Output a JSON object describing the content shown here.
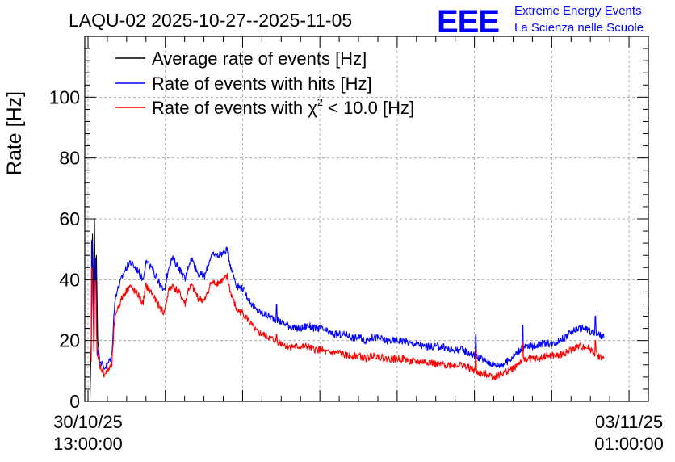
{
  "chart_data": {
    "type": "line",
    "title": "LAQU-02 2025-10-27--2025-11-05",
    "xlabel": "",
    "ylabel": "Rate [Hz]",
    "ylim": [
      0,
      120
    ],
    "yticks": [
      0,
      20,
      40,
      60,
      80,
      100
    ],
    "xlim_hours_from_first_label": [
      -0.5,
      87
    ],
    "xtick_labels": [
      {
        "line1": "30/10/25",
        "line2": "13:00:00",
        "hours": 0
      },
      {
        "line1": "03/11/25",
        "line2": "01:00:00",
        "hours": 84
      }
    ],
    "x_gridlines_hours": [
      0,
      12,
      24,
      36,
      48,
      60,
      72,
      84
    ],
    "grid": true,
    "legend_position": "top-left",
    "series": [
      {
        "name": "Average rate of events [Hz]",
        "legend_prefix": "Average rate of events [Hz]",
        "color": "#000000",
        "points": [
          [
            0.3,
            0
          ],
          [
            0.5,
            20
          ],
          [
            0.7,
            55
          ],
          [
            0.8,
            30
          ],
          [
            1.0,
            60
          ],
          [
            1.1,
            40
          ],
          [
            1.3,
            48
          ],
          [
            1.5,
            20
          ],
          [
            1.8,
            14
          ]
        ]
      },
      {
        "name": "Rate of events with hits [Hz]",
        "legend_prefix": "Rate of events with hits [Hz]",
        "color": "#0000ff",
        "noise": 1.2,
        "points": [
          [
            0.5,
            14
          ],
          [
            0.7,
            47
          ],
          [
            0.9,
            20
          ],
          [
            1.2,
            47
          ],
          [
            1.4,
            18
          ],
          [
            1.8,
            14
          ],
          [
            2.5,
            11
          ],
          [
            3.0,
            12
          ],
          [
            3.7,
            15
          ],
          [
            4.0,
            28
          ],
          [
            4.3,
            35
          ],
          [
            5.5,
            42
          ],
          [
            6.5,
            46
          ],
          [
            7.3,
            44
          ],
          [
            7.8,
            43
          ],
          [
            8.5,
            40
          ],
          [
            9.0,
            46
          ],
          [
            9.8,
            44
          ],
          [
            10.8,
            40
          ],
          [
            11.8,
            36
          ],
          [
            12.6,
            45
          ],
          [
            13.1,
            47
          ],
          [
            14.1,
            44
          ],
          [
            15.1,
            40
          ],
          [
            15.6,
            45
          ],
          [
            16.1,
            47
          ],
          [
            17.1,
            42
          ],
          [
            18.1,
            41
          ],
          [
            19.1,
            48
          ],
          [
            20.1,
            48
          ],
          [
            21.1,
            49
          ],
          [
            21.6,
            50
          ],
          [
            22.1,
            45
          ],
          [
            23.1,
            38
          ],
          [
            24.1,
            37
          ],
          [
            25.1,
            33
          ],
          [
            26.1,
            30
          ],
          [
            27.1,
            29
          ],
          [
            28.1,
            28
          ],
          [
            29.1,
            27
          ],
          [
            30.1,
            26
          ],
          [
            31.1,
            25
          ],
          [
            32.1,
            24
          ],
          [
            33.1,
            24
          ],
          [
            34.1,
            25
          ],
          [
            35.1,
            24
          ],
          [
            36.1,
            24
          ],
          [
            37.1,
            23
          ],
          [
            38.1,
            22
          ],
          [
            39.1,
            22
          ],
          [
            40.1,
            22
          ],
          [
            41.1,
            21
          ],
          [
            42.1,
            21
          ],
          [
            43.1,
            20
          ],
          [
            44.1,
            21
          ],
          [
            45.1,
            21
          ],
          [
            46.1,
            20
          ],
          [
            47.1,
            20
          ],
          [
            48.1,
            20
          ],
          [
            49.1,
            20
          ],
          [
            50.1,
            19
          ],
          [
            51.1,
            19
          ],
          [
            52.1,
            18
          ],
          [
            53.1,
            18
          ],
          [
            54.1,
            18
          ],
          [
            55.1,
            18
          ],
          [
            56.1,
            17
          ],
          [
            57.1,
            17
          ],
          [
            58.1,
            17
          ],
          [
            59.1,
            16
          ],
          [
            60.1,
            15
          ],
          [
            61.1,
            14
          ],
          [
            62.1,
            13
          ],
          [
            63.1,
            12
          ],
          [
            64.1,
            12
          ],
          [
            65.1,
            13
          ],
          [
            66.1,
            15
          ],
          [
            67.1,
            17
          ],
          [
            68.1,
            18
          ],
          [
            69.1,
            18
          ],
          [
            70.1,
            19
          ],
          [
            71.1,
            19
          ],
          [
            72.1,
            19
          ],
          [
            73.1,
            20
          ],
          [
            74.1,
            21
          ],
          [
            75.1,
            23
          ],
          [
            76.1,
            24
          ],
          [
            77.1,
            24
          ],
          [
            78.1,
            23
          ],
          [
            79.1,
            22
          ],
          [
            80.1,
            21
          ]
        ],
        "spikes": [
          [
            0.6,
            53
          ],
          [
            1.1,
            47
          ],
          [
            10.6,
            42
          ],
          [
            14.6,
            43
          ],
          [
            29.3,
            32
          ],
          [
            60.2,
            22
          ],
          [
            67.5,
            25
          ],
          [
            78.8,
            28
          ]
        ]
      },
      {
        "name": "Rate of events with χ² < 10.0 [Hz]",
        "legend_prefix": "Rate of events with χ",
        "legend_sup": "2",
        "legend_suffix": " < 10.0 [Hz]",
        "color": "#ff0000",
        "noise": 1.2,
        "points": [
          [
            0.5,
            12
          ],
          [
            0.7,
            40
          ],
          [
            0.9,
            17
          ],
          [
            1.2,
            40
          ],
          [
            1.4,
            15
          ],
          [
            1.8,
            12
          ],
          [
            2.5,
            9
          ],
          [
            3.0,
            10
          ],
          [
            3.7,
            12
          ],
          [
            4.0,
            23
          ],
          [
            4.3,
            29
          ],
          [
            5.5,
            35
          ],
          [
            6.5,
            38
          ],
          [
            7.3,
            36
          ],
          [
            7.8,
            35
          ],
          [
            8.5,
            32
          ],
          [
            9.0,
            38
          ],
          [
            9.8,
            36
          ],
          [
            10.8,
            32
          ],
          [
            11.8,
            29
          ],
          [
            12.6,
            37
          ],
          [
            13.1,
            38
          ],
          [
            14.1,
            36
          ],
          [
            15.1,
            32
          ],
          [
            15.6,
            37
          ],
          [
            16.1,
            38
          ],
          [
            17.1,
            34
          ],
          [
            18.1,
            33
          ],
          [
            19.1,
            39
          ],
          [
            20.1,
            39
          ],
          [
            21.1,
            40
          ],
          [
            21.6,
            41
          ],
          [
            22.1,
            36
          ],
          [
            23.1,
            30
          ],
          [
            24.1,
            29
          ],
          [
            25.1,
            26
          ],
          [
            26.1,
            23
          ],
          [
            27.1,
            22
          ],
          [
            28.1,
            21
          ],
          [
            29.1,
            20
          ],
          [
            30.1,
            19
          ],
          [
            31.1,
            18
          ],
          [
            32.1,
            18
          ],
          [
            33.1,
            18
          ],
          [
            34.1,
            18
          ],
          [
            35.1,
            17
          ],
          [
            36.1,
            17
          ],
          [
            37.1,
            16
          ],
          [
            38.1,
            16
          ],
          [
            39.1,
            16
          ],
          [
            40.1,
            15
          ],
          [
            41.1,
            15
          ],
          [
            42.1,
            15
          ],
          [
            43.1,
            14
          ],
          [
            44.1,
            15
          ],
          [
            45.1,
            15
          ],
          [
            46.1,
            14
          ],
          [
            47.1,
            14
          ],
          [
            48.1,
            14
          ],
          [
            49.1,
            14
          ],
          [
            50.1,
            13
          ],
          [
            51.1,
            13
          ],
          [
            52.1,
            13
          ],
          [
            53.1,
            13
          ],
          [
            54.1,
            12
          ],
          [
            55.1,
            12
          ],
          [
            56.1,
            12
          ],
          [
            57.1,
            12
          ],
          [
            58.1,
            12
          ],
          [
            59.1,
            11
          ],
          [
            60.1,
            10
          ],
          [
            61.1,
            9
          ],
          [
            62.1,
            9
          ],
          [
            63.1,
            8
          ],
          [
            64.1,
            9
          ],
          [
            65.1,
            10
          ],
          [
            66.1,
            11
          ],
          [
            67.1,
            13
          ],
          [
            68.1,
            14
          ],
          [
            69.1,
            14
          ],
          [
            70.1,
            14
          ],
          [
            71.1,
            15
          ],
          [
            72.1,
            15
          ],
          [
            73.1,
            15
          ],
          [
            74.1,
            16
          ],
          [
            75.1,
            17
          ],
          [
            76.1,
            18
          ],
          [
            77.1,
            18
          ],
          [
            78.1,
            17
          ],
          [
            79.1,
            15
          ],
          [
            80.1,
            14
          ]
        ],
        "spikes": [
          [
            0.6,
            44
          ],
          [
            1.1,
            40
          ],
          [
            29.3,
            22
          ],
          [
            60.2,
            17
          ],
          [
            67.5,
            19
          ],
          [
            78.8,
            20
          ]
        ]
      }
    ]
  },
  "logo": {
    "letters": "EEE",
    "line1": "Extreme Energy Events",
    "line2": "La Scienza nelle Scuole",
    "color": "#0000ff"
  }
}
